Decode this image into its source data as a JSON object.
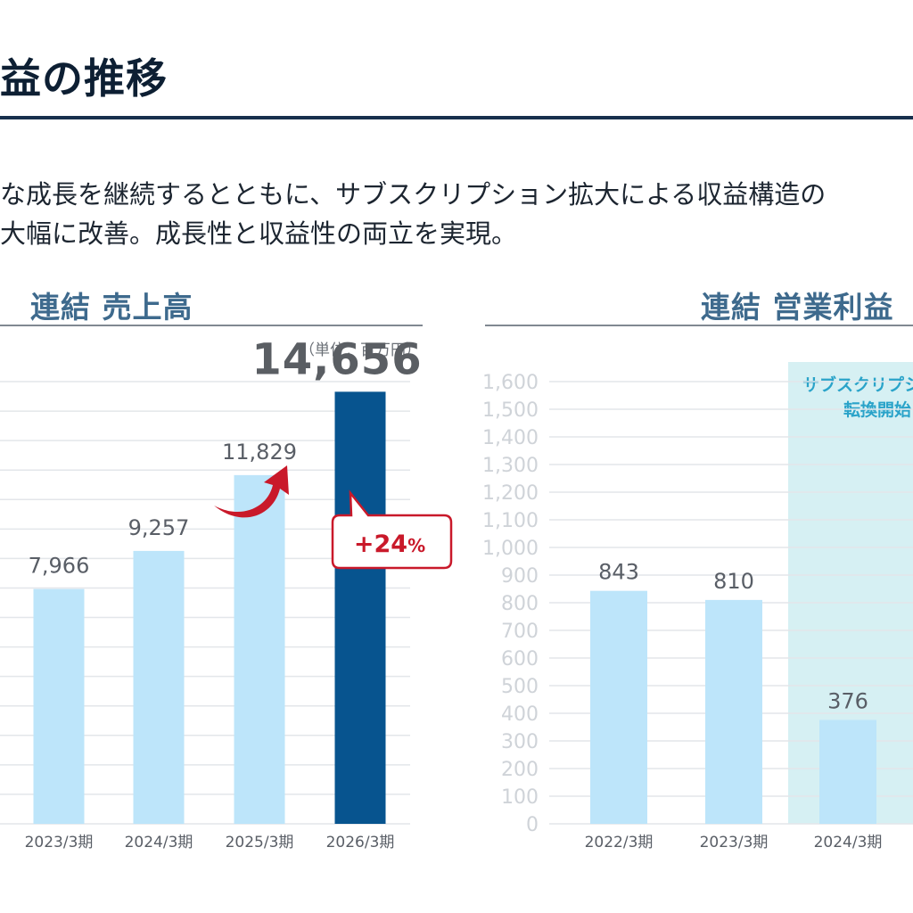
{
  "page": {
    "title": "益の推移",
    "lead_line1": "な成長を継続するとともに、サブスクリプション拡大による収益構造の",
    "lead_line2": "大幅に改善。成長性と収益性の両立を実現。"
  },
  "colors": {
    "bar_light": "#bde5fa",
    "bar_dark": "#07548f",
    "accent_red": "#c9192a",
    "band": "#d6f0f3",
    "title_rule": "#17304d"
  },
  "chart_data": [
    {
      "type": "bar",
      "title": "連結 売上高",
      "unit_note": "（単位：百万円）",
      "categories": [
        "2023/3期",
        "2024/3期",
        "2025/3期",
        "2026/3期"
      ],
      "values": [
        7966,
        9257,
        11829,
        14656
      ],
      "value_labels": [
        "7,966",
        "9,257",
        "11,829",
        "14,656"
      ],
      "highlight_index": 3,
      "annotation": {
        "prefix": "+24",
        "suffix": "%"
      },
      "ylim": [
        0,
        15000
      ],
      "grid": true,
      "icons": [
        "curved-arrow-icon"
      ]
    },
    {
      "type": "bar",
      "title": "連結 営業利益",
      "categories": [
        "2022/3期",
        "2023/3期",
        "2024/3期"
      ],
      "values": [
        843,
        810,
        376
      ],
      "value_labels": [
        "843",
        "810",
        "376"
      ],
      "yticks": [
        "1,600",
        "1,500",
        "1,400",
        "1,300",
        "1,200",
        "1,100",
        "1,000",
        "900",
        "800",
        "700",
        "600",
        "500",
        "400",
        "300",
        "200",
        "100",
        "0"
      ],
      "ylim": [
        0,
        1600
      ],
      "grid": true,
      "band": {
        "line1": "サブスクリプシ",
        "line2": "転換開始"
      }
    }
  ]
}
